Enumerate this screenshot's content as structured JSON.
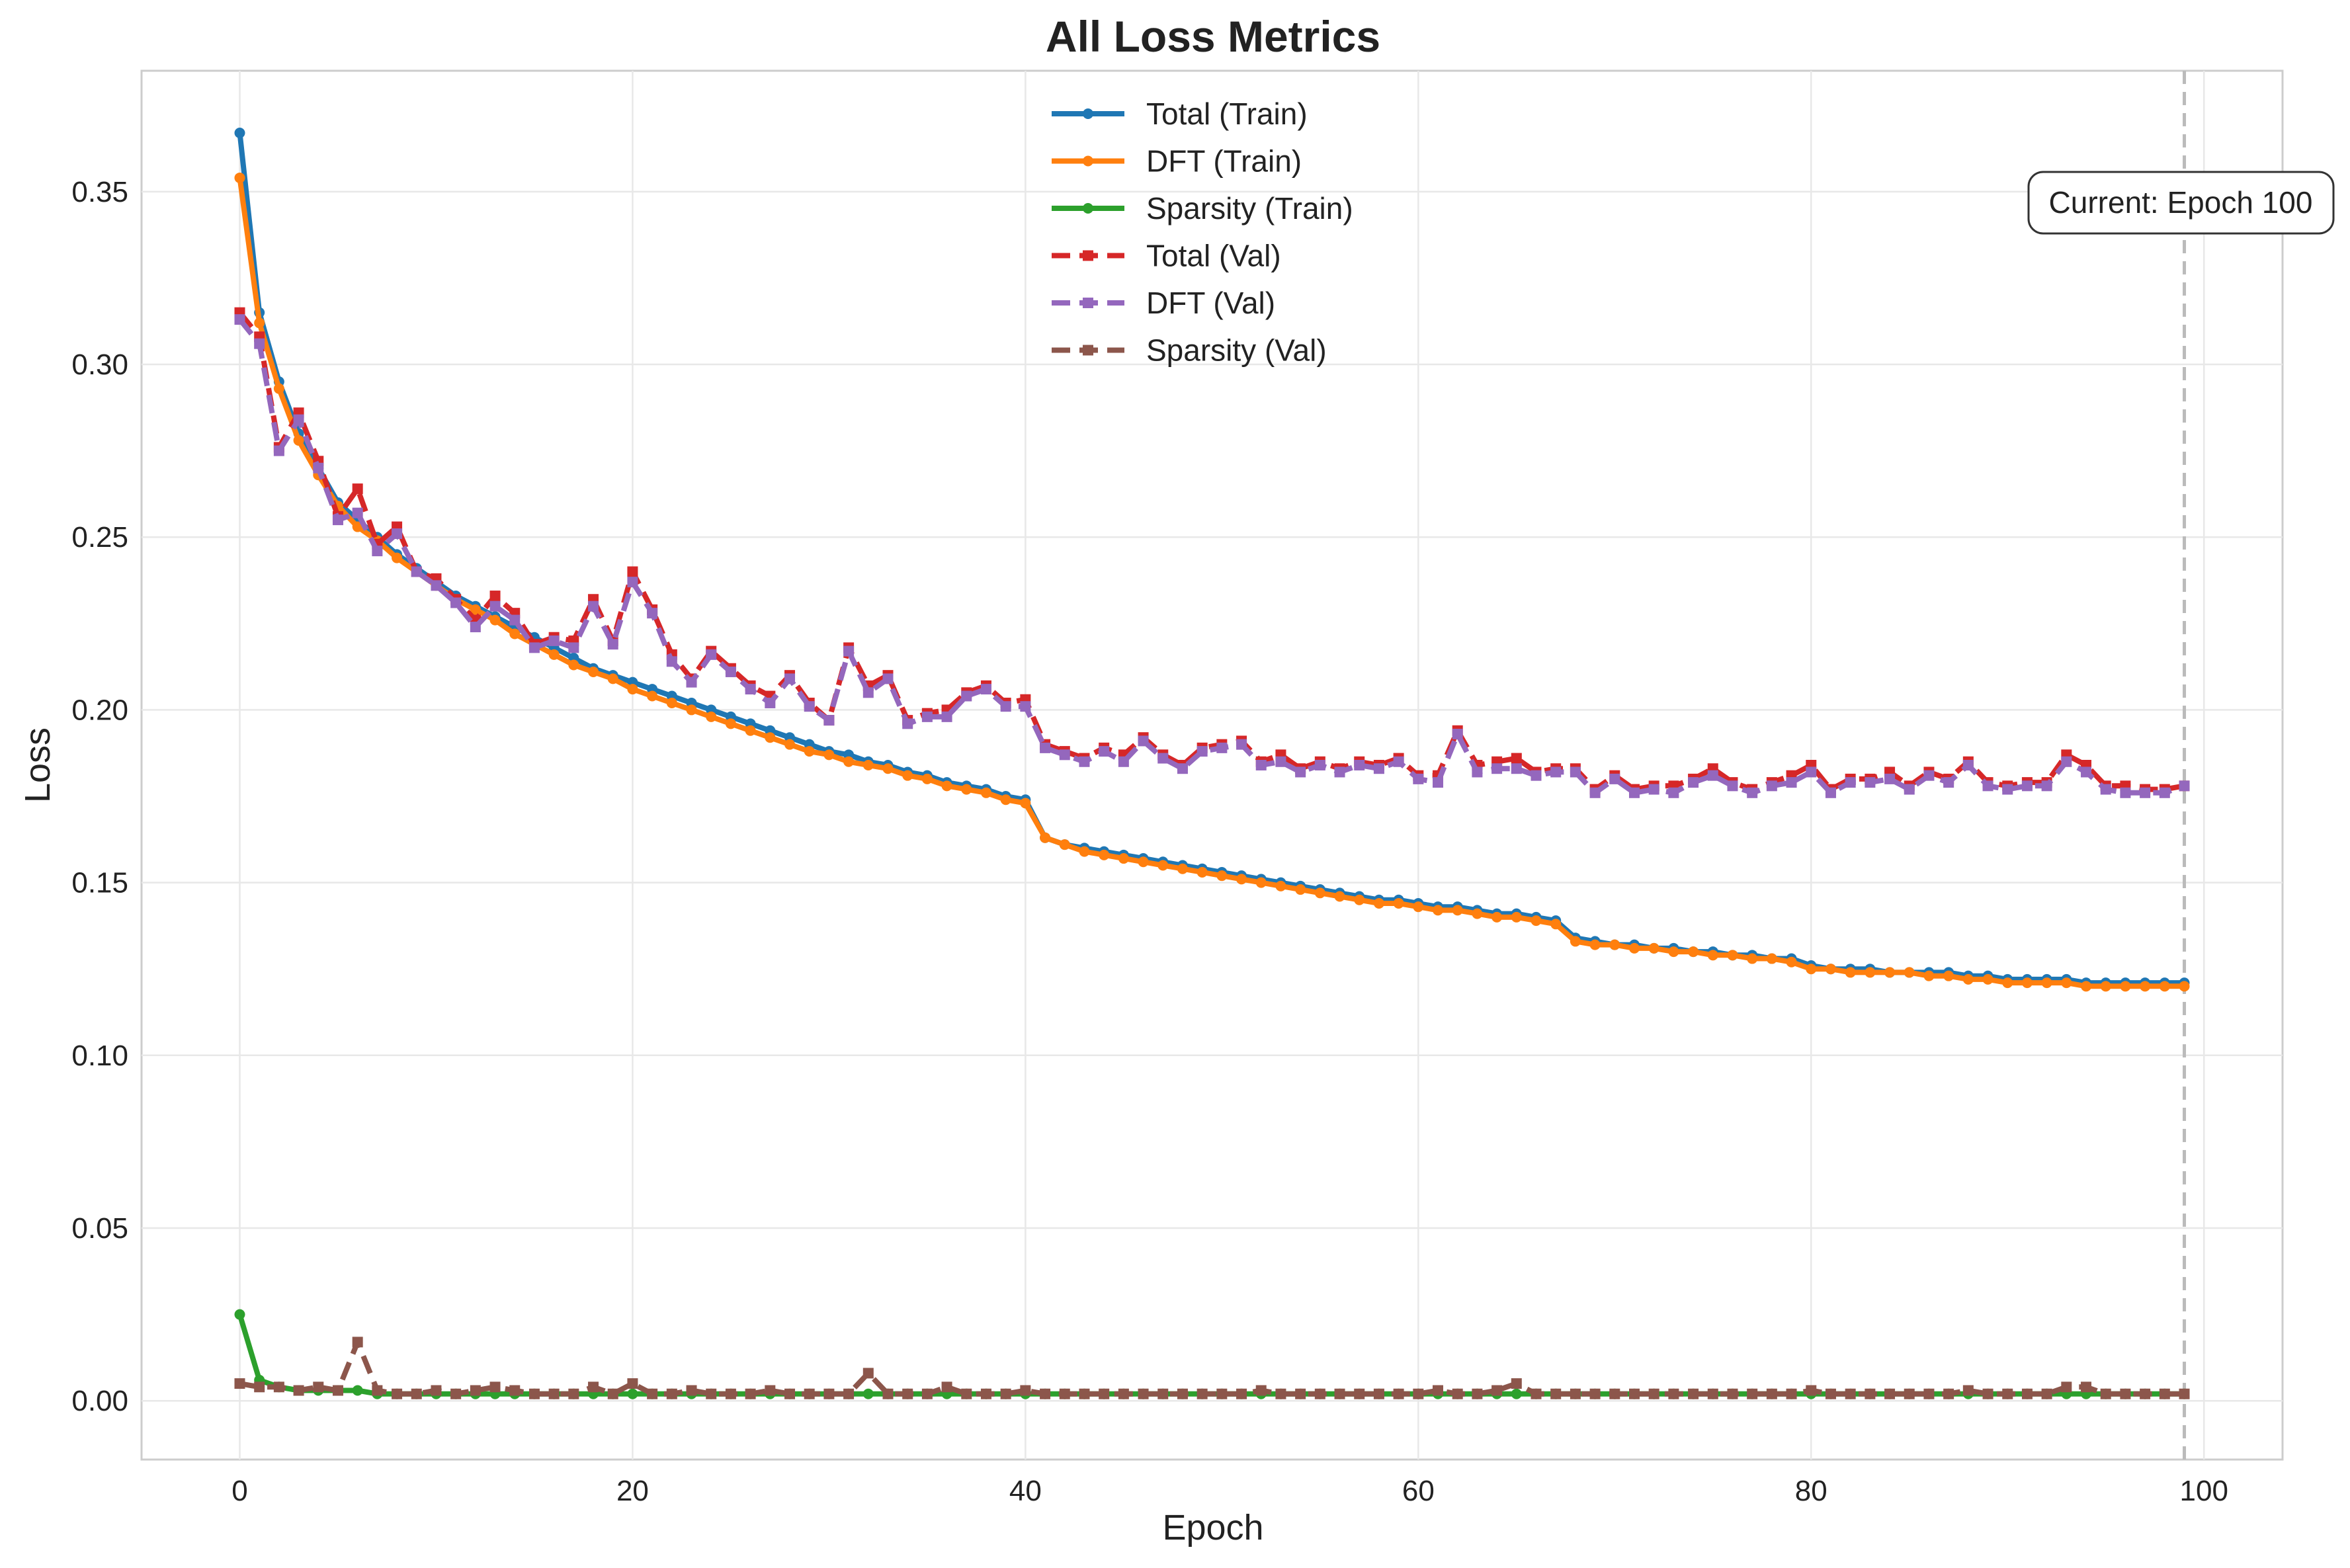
{
  "chart_data": {
    "type": "line",
    "title": "All Loss Metrics",
    "xlabel": "Epoch",
    "ylabel": "Loss",
    "xlim": [
      -5,
      104
    ],
    "ylim": [
      -0.017,
      0.385
    ],
    "xticks": [
      0,
      20,
      40,
      60,
      80,
      100
    ],
    "yticks": [
      0.0,
      0.05,
      0.1,
      0.15,
      0.2,
      0.25,
      0.3,
      0.35
    ],
    "grid": true,
    "legend_position": "top-center",
    "x": [
      0,
      1,
      2,
      3,
      4,
      5,
      6,
      7,
      8,
      9,
      10,
      11,
      12,
      13,
      14,
      15,
      16,
      17,
      18,
      19,
      20,
      21,
      22,
      23,
      24,
      25,
      26,
      27,
      28,
      29,
      30,
      31,
      32,
      33,
      34,
      35,
      36,
      37,
      38,
      39,
      40,
      41,
      42,
      43,
      44,
      45,
      46,
      47,
      48,
      49,
      50,
      51,
      52,
      53,
      54,
      55,
      56,
      57,
      58,
      59,
      60,
      61,
      62,
      63,
      64,
      65,
      66,
      67,
      68,
      69,
      70,
      71,
      72,
      73,
      74,
      75,
      76,
      77,
      78,
      79,
      80,
      81,
      82,
      83,
      84,
      85,
      86,
      87,
      88,
      89,
      90,
      91,
      92,
      93,
      94,
      95,
      96,
      97,
      98,
      99
    ],
    "series": [
      {
        "name": "Total (Train)",
        "color": "#1f77b4",
        "linestyle": "solid",
        "marker": "circle",
        "values": [
          0.367,
          0.315,
          0.295,
          0.28,
          0.27,
          0.26,
          0.255,
          0.25,
          0.245,
          0.241,
          0.237,
          0.233,
          0.23,
          0.227,
          0.224,
          0.221,
          0.218,
          0.215,
          0.212,
          0.21,
          0.208,
          0.206,
          0.204,
          0.202,
          0.2,
          0.198,
          0.196,
          0.194,
          0.192,
          0.19,
          0.188,
          0.187,
          0.185,
          0.184,
          0.182,
          0.181,
          0.179,
          0.178,
          0.177,
          0.175,
          0.174,
          0.163,
          0.161,
          0.16,
          0.159,
          0.158,
          0.157,
          0.156,
          0.155,
          0.154,
          0.153,
          0.152,
          0.151,
          0.15,
          0.149,
          0.148,
          0.147,
          0.146,
          0.145,
          0.145,
          0.144,
          0.143,
          0.143,
          0.142,
          0.141,
          0.141,
          0.14,
          0.139,
          0.134,
          0.133,
          0.132,
          0.132,
          0.131,
          0.131,
          0.13,
          0.13,
          0.129,
          0.129,
          0.128,
          0.128,
          0.126,
          0.125,
          0.125,
          0.125,
          0.124,
          0.124,
          0.124,
          0.124,
          0.123,
          0.123,
          0.122,
          0.122,
          0.122,
          0.122,
          0.121,
          0.121,
          0.121,
          0.121,
          0.121,
          0.121
        ]
      },
      {
        "name": "DFT (Train)",
        "color": "#ff7f0e",
        "linestyle": "solid",
        "marker": "circle",
        "values": [
          0.354,
          0.312,
          0.293,
          0.278,
          0.268,
          0.259,
          0.253,
          0.249,
          0.244,
          0.24,
          0.236,
          0.232,
          0.229,
          0.226,
          0.222,
          0.219,
          0.216,
          0.213,
          0.211,
          0.209,
          0.206,
          0.204,
          0.202,
          0.2,
          0.198,
          0.196,
          0.194,
          0.192,
          0.19,
          0.188,
          0.187,
          0.185,
          0.184,
          0.183,
          0.181,
          0.18,
          0.178,
          0.177,
          0.176,
          0.174,
          0.173,
          0.163,
          0.161,
          0.159,
          0.158,
          0.157,
          0.156,
          0.155,
          0.154,
          0.153,
          0.152,
          0.151,
          0.15,
          0.149,
          0.148,
          0.147,
          0.146,
          0.145,
          0.144,
          0.144,
          0.143,
          0.142,
          0.142,
          0.141,
          0.14,
          0.14,
          0.139,
          0.138,
          0.133,
          0.132,
          0.132,
          0.131,
          0.131,
          0.13,
          0.13,
          0.129,
          0.129,
          0.128,
          0.128,
          0.127,
          0.125,
          0.125,
          0.124,
          0.124,
          0.124,
          0.124,
          0.123,
          0.123,
          0.122,
          0.122,
          0.121,
          0.121,
          0.121,
          0.121,
          0.12,
          0.12,
          0.12,
          0.12,
          0.12,
          0.12
        ]
      },
      {
        "name": "Sparsity (Train)",
        "color": "#2ca02c",
        "linestyle": "solid",
        "marker": "circle",
        "values": [
          0.025,
          0.006,
          0.004,
          0.003,
          0.003,
          0.003,
          0.003,
          0.002,
          0.002,
          0.002,
          0.002,
          0.002,
          0.002,
          0.002,
          0.002,
          0.002,
          0.002,
          0.002,
          0.002,
          0.002,
          0.002,
          0.002,
          0.002,
          0.002,
          0.002,
          0.002,
          0.002,
          0.002,
          0.002,
          0.002,
          0.002,
          0.002,
          0.002,
          0.002,
          0.002,
          0.002,
          0.002,
          0.002,
          0.002,
          0.002,
          0.002,
          0.002,
          0.002,
          0.002,
          0.002,
          0.002,
          0.002,
          0.002,
          0.002,
          0.002,
          0.002,
          0.002,
          0.002,
          0.002,
          0.002,
          0.002,
          0.002,
          0.002,
          0.002,
          0.002,
          0.002,
          0.002,
          0.002,
          0.002,
          0.002,
          0.002,
          0.002,
          0.002,
          0.002,
          0.002,
          0.002,
          0.002,
          0.002,
          0.002,
          0.002,
          0.002,
          0.002,
          0.002,
          0.002,
          0.002,
          0.002,
          0.002,
          0.002,
          0.002,
          0.002,
          0.002,
          0.002,
          0.002,
          0.002,
          0.002,
          0.002,
          0.002,
          0.002,
          0.002,
          0.002,
          0.002,
          0.002,
          0.002,
          0.002,
          0.002
        ]
      },
      {
        "name": "Total (Val)",
        "color": "#d62728",
        "linestyle": "dashed",
        "marker": "square",
        "values": [
          0.315,
          0.308,
          0.276,
          0.286,
          0.272,
          0.256,
          0.264,
          0.248,
          0.253,
          0.24,
          0.238,
          0.232,
          0.226,
          0.233,
          0.228,
          0.219,
          0.221,
          0.22,
          0.232,
          0.22,
          0.24,
          0.229,
          0.216,
          0.209,
          0.217,
          0.212,
          0.207,
          0.204,
          0.21,
          0.202,
          0.197,
          0.218,
          0.207,
          0.21,
          0.197,
          0.199,
          0.2,
          0.205,
          0.207,
          0.202,
          0.203,
          0.19,
          0.188,
          0.186,
          0.189,
          0.187,
          0.192,
          0.187,
          0.184,
          0.189,
          0.19,
          0.191,
          0.185,
          0.187,
          0.183,
          0.185,
          0.183,
          0.185,
          0.184,
          0.186,
          0.181,
          0.181,
          0.194,
          0.184,
          0.185,
          0.186,
          0.182,
          0.183,
          0.183,
          0.177,
          0.181,
          0.177,
          0.178,
          0.178,
          0.18,
          0.183,
          0.179,
          0.177,
          0.179,
          0.181,
          0.184,
          0.177,
          0.18,
          0.18,
          0.182,
          0.178,
          0.182,
          0.18,
          0.185,
          0.179,
          0.178,
          0.179,
          0.179,
          0.187,
          0.184,
          0.178,
          0.178,
          0.177,
          0.177,
          0.178
        ]
      },
      {
        "name": "DFT (Val)",
        "color": "#9467bd",
        "linestyle": "dashed",
        "marker": "square",
        "values": [
          0.313,
          0.306,
          0.275,
          0.284,
          0.27,
          0.255,
          0.257,
          0.246,
          0.251,
          0.24,
          0.236,
          0.231,
          0.224,
          0.23,
          0.226,
          0.218,
          0.22,
          0.218,
          0.23,
          0.219,
          0.237,
          0.228,
          0.214,
          0.208,
          0.216,
          0.211,
          0.206,
          0.202,
          0.209,
          0.201,
          0.197,
          0.217,
          0.205,
          0.209,
          0.196,
          0.198,
          0.198,
          0.204,
          0.206,
          0.201,
          0.201,
          0.189,
          0.187,
          0.185,
          0.188,
          0.185,
          0.191,
          0.186,
          0.183,
          0.188,
          0.189,
          0.19,
          0.184,
          0.185,
          0.182,
          0.184,
          0.182,
          0.184,
          0.183,
          0.185,
          0.18,
          0.179,
          0.193,
          0.182,
          0.183,
          0.183,
          0.181,
          0.182,
          0.182,
          0.176,
          0.18,
          0.176,
          0.177,
          0.176,
          0.179,
          0.181,
          0.178,
          0.176,
          0.178,
          0.179,
          0.182,
          0.176,
          0.179,
          0.179,
          0.18,
          0.177,
          0.181,
          0.179,
          0.184,
          0.178,
          0.177,
          0.178,
          0.178,
          0.185,
          0.182,
          0.177,
          0.176,
          0.176,
          0.176,
          0.178
        ]
      },
      {
        "name": "Sparsity (Val)",
        "color": "#8c564b",
        "linestyle": "dashed",
        "marker": "square",
        "values": [
          0.005,
          0.004,
          0.004,
          0.003,
          0.004,
          0.003,
          0.017,
          0.003,
          0.002,
          0.002,
          0.003,
          0.002,
          0.003,
          0.004,
          0.003,
          0.002,
          0.002,
          0.002,
          0.004,
          0.002,
          0.005,
          0.002,
          0.002,
          0.003,
          0.002,
          0.002,
          0.002,
          0.003,
          0.002,
          0.002,
          0.002,
          0.002,
          0.008,
          0.002,
          0.002,
          0.002,
          0.004,
          0.002,
          0.002,
          0.002,
          0.003,
          0.002,
          0.002,
          0.002,
          0.002,
          0.002,
          0.002,
          0.002,
          0.002,
          0.002,
          0.002,
          0.002,
          0.003,
          0.002,
          0.002,
          0.002,
          0.002,
          0.002,
          0.002,
          0.002,
          0.002,
          0.003,
          0.002,
          0.002,
          0.003,
          0.005,
          0.002,
          0.002,
          0.002,
          0.002,
          0.002,
          0.002,
          0.002,
          0.002,
          0.002,
          0.002,
          0.002,
          0.002,
          0.002,
          0.002,
          0.003,
          0.002,
          0.002,
          0.002,
          0.002,
          0.002,
          0.002,
          0.002,
          0.003,
          0.002,
          0.002,
          0.002,
          0.002,
          0.004,
          0.004,
          0.002,
          0.002,
          0.002,
          0.002,
          0.002
        ]
      }
    ],
    "annotation": {
      "text": "Current: Epoch 100",
      "vline_x": 99,
      "vline_color": "#bbbbbb"
    }
  }
}
